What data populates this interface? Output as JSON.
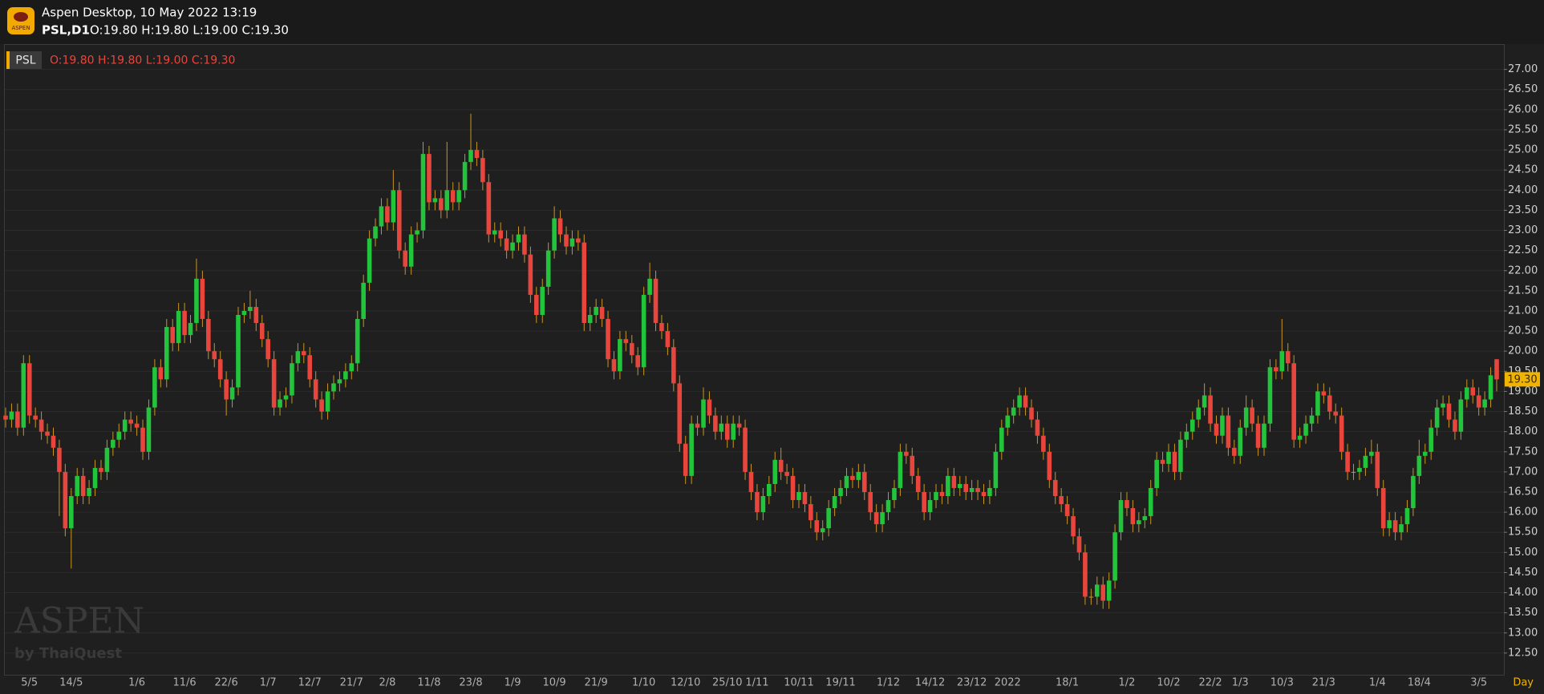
{
  "header": {
    "app_title": "Aspen Desktop, 10 May 2022 13:19",
    "symbol_period": "PSL,D1",
    "ohlc": "O:19.80 H:19.80 L:19.00 C:19.30"
  },
  "watermark": {
    "title": "ASPEN",
    "byline": "by ThaiQuest"
  },
  "chart_data": {
    "type": "candlestick",
    "symbol": "PSL",
    "ohlc_label": "O:19.80 H:19.80 L:19.00 C:19.30",
    "x_label": "Day",
    "up_color": "#22c43c",
    "down_color": "#e8463c",
    "neutral_color": "#c9961f",
    "wick_color": "#c9961f",
    "grid": true,
    "last_price": {
      "value": 19.3,
      "label": "19.30"
    },
    "last_price_color": "#f0b400",
    "ylim": [
      11.96,
      27.61
    ],
    "yticks": [
      {
        "value": 12.5,
        "label": "12.50"
      },
      {
        "value": 13,
        "label": "13.00"
      },
      {
        "value": 13.5,
        "label": "13.50"
      },
      {
        "value": 14,
        "label": "14.00"
      },
      {
        "value": 14.5,
        "label": "14.50"
      },
      {
        "value": 15,
        "label": "15.00"
      },
      {
        "value": 15.5,
        "label": "15.50"
      },
      {
        "value": 16,
        "label": "16.00"
      },
      {
        "value": 16.5,
        "label": "16.50"
      },
      {
        "value": 17,
        "label": "17.00"
      },
      {
        "value": 17.5,
        "label": "17.50"
      },
      {
        "value": 18,
        "label": "18.00"
      },
      {
        "value": 18.5,
        "label": "18.50"
      },
      {
        "value": 19,
        "label": "19.00"
      },
      {
        "value": 19.5,
        "label": "19.50"
      },
      {
        "value": 20,
        "label": "20.00"
      },
      {
        "value": 20.5,
        "label": "20.50"
      },
      {
        "value": 21,
        "label": "21.00"
      },
      {
        "value": 21.5,
        "label": "21.50"
      },
      {
        "value": 22,
        "label": "22.00"
      },
      {
        "value": 22.5,
        "label": "22.50"
      },
      {
        "value": 23,
        "label": "23.00"
      },
      {
        "value": 23.5,
        "label": "23.50"
      },
      {
        "value": 24,
        "label": "24.00"
      },
      {
        "value": 24.5,
        "label": "24.50"
      },
      {
        "value": 25,
        "label": "25.00"
      },
      {
        "value": 25.5,
        "label": "25.50"
      },
      {
        "value": 26,
        "label": "26.00"
      },
      {
        "value": 26.5,
        "label": "26.50"
      },
      {
        "value": 27,
        "label": "27.00"
      }
    ],
    "categories": [
      null,
      null,
      null,
      null,
      "5/5",
      null,
      null,
      null,
      null,
      null,
      null,
      "14/5",
      null,
      null,
      null,
      null,
      null,
      null,
      null,
      null,
      null,
      null,
      "1/6",
      null,
      null,
      null,
      null,
      null,
      null,
      null,
      "11/6",
      null,
      null,
      null,
      null,
      null,
      null,
      "22/6",
      null,
      null,
      null,
      null,
      null,
      null,
      "1/7",
      null,
      null,
      null,
      null,
      null,
      null,
      "12/7",
      null,
      null,
      null,
      null,
      null,
      null,
      "21/7",
      null,
      null,
      null,
      null,
      null,
      "2/8",
      null,
      null,
      null,
      null,
      null,
      null,
      "11/8",
      null,
      null,
      null,
      null,
      null,
      null,
      "23/8",
      null,
      null,
      null,
      null,
      null,
      null,
      "1/9",
      null,
      null,
      null,
      null,
      null,
      null,
      "10/9",
      null,
      null,
      null,
      null,
      null,
      null,
      "21/9",
      null,
      null,
      null,
      null,
      null,
      null,
      null,
      "1/10",
      null,
      null,
      null,
      null,
      null,
      null,
      "12/10",
      null,
      null,
      null,
      null,
      null,
      null,
      "25/10",
      null,
      null,
      null,
      null,
      "1/11",
      null,
      null,
      null,
      null,
      null,
      null,
      "10/11",
      null,
      null,
      null,
      null,
      null,
      null,
      "19/11",
      null,
      null,
      null,
      null,
      null,
      null,
      null,
      "1/12",
      null,
      null,
      null,
      null,
      null,
      null,
      "14/12",
      null,
      null,
      null,
      null,
      null,
      null,
      "23/12",
      null,
      null,
      null,
      null,
      null,
      "2022",
      null,
      null,
      null,
      null,
      null,
      null,
      null,
      null,
      null,
      "18/1",
      null,
      null,
      null,
      null,
      null,
      null,
      null,
      null,
      null,
      "1/2",
      null,
      null,
      null,
      null,
      null,
      null,
      "10/2",
      null,
      null,
      null,
      null,
      null,
      null,
      "22/2",
      null,
      null,
      null,
      null,
      "1/3",
      null,
      null,
      null,
      null,
      null,
      null,
      "10/3",
      null,
      null,
      null,
      null,
      null,
      null,
      "21/3",
      null,
      null,
      null,
      null,
      null,
      null,
      null,
      null,
      "1/4",
      null,
      null,
      null,
      null,
      null,
      null,
      "18/4",
      null,
      null,
      null,
      null,
      null,
      null,
      null,
      null,
      null,
      "3/5",
      null,
      null,
      null
    ],
    "open": [
      18.4,
      18.3,
      18.5,
      18.1,
      19.7,
      18.4,
      18.3,
      18.0,
      17.9,
      17.6,
      17.0,
      15.6,
      16.4,
      16.9,
      16.4,
      16.6,
      17.1,
      17.0,
      17.6,
      17.8,
      18.0,
      18.3,
      18.2,
      18.1,
      17.5,
      18.6,
      19.6,
      19.3,
      20.6,
      20.2,
      21.0,
      20.4,
      20.7,
      21.8,
      20.8,
      20.0,
      19.8,
      19.3,
      18.8,
      19.1,
      20.9,
      21.0,
      21.1,
      20.7,
      20.3,
      19.8,
      18.6,
      18.8,
      18.9,
      19.7,
      20.0,
      19.9,
      19.3,
      18.8,
      18.5,
      19.0,
      19.2,
      19.3,
      19.5,
      19.7,
      20.8,
      21.7,
      22.8,
      23.1,
      23.6,
      23.2,
      24.0,
      22.5,
      22.1,
      22.9,
      23.0,
      24.9,
      23.7,
      23.8,
      23.5,
      24.0,
      23.7,
      24.0,
      24.7,
      25.0,
      24.8,
      24.2,
      22.9,
      23.0,
      22.8,
      22.5,
      22.7,
      22.9,
      22.4,
      21.4,
      20.9,
      21.6,
      22.5,
      23.3,
      22.9,
      22.6,
      22.8,
      22.7,
      20.7,
      20.9,
      21.1,
      20.8,
      19.8,
      19.5,
      20.3,
      20.2,
      19.9,
      19.6,
      21.4,
      21.8,
      20.7,
      20.5,
      20.1,
      19.2,
      17.7,
      16.9,
      18.2,
      18.1,
      18.8,
      18.4,
      18.0,
      18.2,
      17.8,
      18.2,
      18.1,
      17.0,
      16.5,
      16.0,
      16.4,
      16.7,
      17.3,
      17.0,
      16.9,
      16.3,
      16.5,
      16.2,
      15.8,
      15.5,
      15.6,
      16.1,
      16.4,
      16.6,
      16.9,
      16.8,
      17.0,
      16.5,
      16.0,
      15.7,
      16.0,
      16.3,
      16.6,
      17.5,
      17.4,
      16.9,
      16.5,
      16.0,
      16.3,
      16.5,
      16.4,
      16.9,
      16.6,
      16.7,
      16.5,
      16.6,
      16.5,
      16.4,
      16.6,
      17.5,
      18.1,
      18.4,
      18.6,
      18.9,
      18.6,
      18.3,
      17.9,
      17.5,
      16.8,
      16.4,
      16.2,
      15.9,
      15.4,
      15.0,
      13.9,
      13.9,
      14.2,
      13.8,
      14.3,
      15.5,
      16.3,
      16.1,
      15.7,
      15.8,
      15.9,
      16.6,
      17.3,
      17.2,
      17.5,
      17.0,
      17.8,
      18.0,
      18.3,
      18.6,
      18.9,
      18.2,
      17.9,
      18.4,
      17.6,
      17.4,
      18.1,
      18.6,
      18.2,
      17.6,
      18.2,
      19.6,
      19.5,
      20.0,
      19.7,
      17.8,
      17.9,
      18.2,
      18.4,
      19.0,
      18.9,
      18.5,
      18.4,
      17.5,
      17.0,
      17.0,
      17.1,
      17.4,
      17.5,
      16.6,
      15.6,
      15.8,
      15.5,
      15.7,
      16.1,
      16.9,
      17.4,
      17.5,
      18.1,
      18.6,
      18.7,
      18.3,
      18.0,
      18.8,
      19.1,
      18.9,
      18.6,
      18.8,
      19.8
    ],
    "high": [
      18.6,
      18.7,
      18.7,
      19.9,
      19.9,
      18.6,
      18.5,
      18.2,
      18.1,
      17.8,
      17.2,
      16.6,
      17.1,
      17.1,
      16.8,
      17.3,
      17.3,
      17.8,
      18.0,
      18.2,
      18.5,
      18.5,
      18.4,
      18.3,
      18.8,
      19.8,
      19.8,
      20.8,
      20.8,
      21.2,
      21.2,
      20.9,
      22.3,
      22.0,
      21.0,
      20.2,
      20.0,
      19.5,
      19.3,
      21.1,
      21.2,
      21.5,
      21.3,
      20.9,
      20.5,
      20.0,
      19.0,
      19.1,
      19.9,
      20.2,
      20.2,
      20.1,
      19.5,
      19.0,
      19.2,
      19.4,
      19.5,
      19.7,
      19.9,
      21.0,
      21.9,
      23.0,
      23.3,
      23.8,
      23.8,
      24.5,
      24.2,
      22.7,
      23.1,
      23.2,
      25.2,
      25.1,
      24.0,
      24.0,
      25.2,
      24.2,
      24.2,
      24.9,
      25.9,
      25.2,
      25.0,
      24.4,
      23.2,
      23.2,
      23.0,
      22.9,
      23.1,
      23.1,
      22.6,
      21.6,
      21.8,
      22.7,
      23.6,
      23.5,
      23.1,
      23.0,
      23.0,
      22.9,
      21.1,
      21.3,
      21.3,
      21.0,
      20.0,
      20.5,
      20.5,
      20.4,
      20.1,
      21.6,
      22.2,
      22.0,
      20.9,
      20.7,
      20.3,
      19.4,
      17.9,
      18.4,
      18.4,
      19.1,
      19.0,
      18.6,
      18.4,
      18.4,
      18.4,
      18.4,
      18.3,
      17.2,
      16.7,
      16.6,
      16.9,
      17.5,
      17.6,
      17.2,
      17.1,
      16.7,
      16.7,
      16.4,
      16.0,
      15.8,
      16.3,
      16.6,
      16.8,
      17.1,
      17.1,
      17.2,
      17.2,
      16.7,
      16.2,
      16.2,
      16.5,
      16.8,
      17.7,
      17.7,
      17.6,
      17.1,
      16.7,
      16.5,
      16.7,
      16.7,
      17.1,
      17.1,
      16.9,
      16.9,
      16.8,
      16.8,
      16.7,
      16.8,
      17.7,
      18.3,
      18.6,
      18.8,
      19.1,
      19.1,
      18.8,
      18.5,
      18.1,
      17.7,
      17.0,
      16.6,
      16.4,
      16.1,
      15.6,
      15.2,
      14.1,
      14.4,
      14.4,
      14.5,
      15.7,
      16.5,
      16.5,
      16.3,
      16.0,
      16.1,
      16.8,
      17.5,
      17.5,
      17.7,
      17.7,
      18.0,
      18.2,
      18.5,
      18.8,
      19.2,
      19.1,
      18.4,
      18.6,
      18.6,
      17.8,
      18.3,
      18.9,
      18.8,
      18.4,
      18.4,
      19.8,
      19.8,
      20.8,
      20.2,
      19.9,
      18.1,
      18.4,
      18.6,
      19.2,
      19.2,
      19.1,
      18.7,
      18.6,
      17.7,
      17.2,
      17.3,
      17.6,
      17.8,
      17.7,
      16.8,
      16.0,
      16.0,
      15.9,
      16.3,
      17.1,
      17.8,
      17.7,
      18.3,
      18.8,
      18.9,
      18.9,
      18.5,
      19.0,
      19.3,
      19.3,
      19.1,
      19.0,
      19.6,
      19.8
    ],
    "low": [
      18.1,
      18.1,
      17.9,
      17.9,
      18.2,
      18.1,
      17.8,
      17.7,
      17.4,
      15.9,
      15.4,
      14.6,
      16.2,
      16.2,
      16.2,
      16.4,
      16.8,
      16.8,
      17.4,
      17.6,
      17.8,
      18.0,
      17.9,
      17.3,
      17.3,
      18.4,
      19.1,
      19.1,
      20.0,
      20.0,
      20.2,
      20.2,
      20.5,
      20.6,
      19.8,
      19.6,
      19.1,
      18.4,
      18.6,
      18.9,
      20.7,
      20.8,
      20.5,
      20.1,
      19.6,
      18.4,
      18.4,
      18.6,
      18.7,
      19.5,
      19.7,
      19.1,
      18.6,
      18.3,
      18.3,
      18.8,
      19.0,
      19.1,
      19.3,
      19.5,
      20.6,
      21.5,
      22.6,
      22.9,
      23.0,
      23.0,
      22.3,
      21.9,
      21.9,
      22.7,
      22.8,
      23.5,
      23.5,
      23.3,
      23.3,
      23.5,
      23.5,
      23.8,
      24.5,
      24.6,
      24.0,
      22.7,
      22.7,
      22.6,
      22.3,
      22.3,
      22.5,
      22.2,
      21.2,
      20.7,
      20.7,
      21.4,
      22.3,
      22.7,
      22.4,
      22.4,
      22.5,
      20.5,
      20.5,
      20.7,
      20.6,
      19.6,
      19.3,
      19.3,
      20.0,
      19.7,
      19.4,
      19.4,
      21.2,
      20.5,
      20.3,
      19.9,
      19.0,
      17.5,
      16.7,
      16.7,
      17.9,
      17.9,
      18.2,
      17.8,
      17.8,
      17.6,
      17.6,
      17.9,
      16.8,
      16.3,
      15.8,
      15.8,
      16.2,
      16.5,
      16.8,
      16.7,
      16.1,
      16.1,
      16.0,
      15.6,
      15.3,
      15.3,
      15.4,
      15.9,
      16.2,
      16.4,
      16.6,
      16.6,
      16.3,
      15.8,
      15.5,
      15.5,
      15.8,
      16.1,
      16.4,
      17.2,
      16.7,
      16.3,
      15.8,
      15.8,
      16.1,
      16.2,
      16.2,
      16.4,
      16.4,
      16.3,
      16.3,
      16.3,
      16.2,
      16.2,
      16.4,
      17.3,
      17.9,
      18.2,
      18.4,
      18.4,
      18.1,
      17.7,
      17.3,
      16.6,
      16.2,
      16.0,
      15.7,
      15.2,
      14.8,
      13.7,
      13.7,
      13.7,
      13.6,
      13.6,
      14.1,
      15.3,
      15.9,
      15.5,
      15.5,
      15.6,
      15.7,
      16.4,
      17.0,
      17.0,
      16.8,
      16.8,
      17.6,
      17.8,
      18.1,
      18.4,
      18.0,
      17.7,
      17.7,
      17.4,
      17.2,
      17.2,
      17.9,
      18.0,
      17.4,
      17.4,
      18.0,
      19.3,
      19.3,
      19.5,
      17.6,
      17.6,
      17.7,
      18.0,
      18.2,
      18.7,
      18.3,
      18.2,
      17.3,
      16.8,
      16.8,
      16.8,
      16.9,
      17.2,
      16.4,
      15.4,
      15.4,
      15.3,
      15.3,
      15.5,
      15.9,
      16.7,
      17.2,
      17.3,
      17.9,
      18.4,
      18.1,
      17.8,
      17.8,
      18.6,
      18.7,
      18.4,
      18.4,
      18.6,
      19.0
    ],
    "close": [
      18.3,
      18.5,
      18.1,
      19.7,
      18.4,
      18.3,
      18.0,
      17.9,
      17.6,
      17.0,
      15.6,
      16.4,
      16.9,
      16.4,
      16.6,
      17.1,
      17.0,
      17.6,
      17.8,
      18.0,
      18.3,
      18.2,
      18.1,
      17.5,
      18.6,
      19.6,
      19.3,
      20.6,
      20.2,
      21.0,
      20.4,
      20.7,
      21.8,
      20.8,
      20.0,
      19.8,
      19.3,
      18.8,
      19.1,
      20.9,
      21.0,
      21.1,
      20.7,
      20.3,
      19.8,
      18.6,
      18.8,
      18.9,
      19.7,
      20.0,
      19.9,
      19.3,
      18.8,
      18.5,
      19.0,
      19.2,
      19.3,
      19.5,
      19.7,
      20.8,
      21.7,
      22.8,
      23.1,
      23.6,
      23.2,
      24.0,
      22.5,
      22.1,
      22.9,
      23.0,
      24.9,
      23.7,
      23.8,
      23.5,
      24.0,
      23.7,
      24.0,
      24.7,
      25.0,
      24.8,
      24.2,
      22.9,
      23.0,
      22.8,
      22.5,
      22.7,
      22.9,
      22.4,
      21.4,
      20.9,
      21.6,
      22.5,
      23.3,
      22.9,
      22.6,
      22.8,
      22.7,
      20.7,
      20.9,
      21.1,
      20.8,
      19.8,
      19.5,
      20.3,
      20.2,
      19.9,
      19.6,
      21.4,
      21.8,
      20.7,
      20.5,
      20.1,
      19.2,
      17.7,
      16.9,
      18.2,
      18.1,
      18.8,
      18.4,
      18.0,
      18.2,
      17.8,
      18.2,
      18.1,
      17.0,
      16.5,
      16.0,
      16.4,
      16.7,
      17.3,
      17.0,
      16.9,
      16.3,
      16.5,
      16.2,
      15.8,
      15.5,
      15.6,
      16.1,
      16.4,
      16.6,
      16.9,
      16.8,
      17.0,
      16.5,
      16.0,
      15.7,
      16.0,
      16.3,
      16.6,
      17.5,
      17.4,
      16.9,
      16.5,
      16.0,
      16.3,
      16.5,
      16.4,
      16.9,
      16.6,
      16.7,
      16.5,
      16.6,
      16.5,
      16.4,
      16.6,
      17.5,
      18.1,
      18.4,
      18.6,
      18.9,
      18.6,
      18.3,
      17.9,
      17.5,
      16.8,
      16.4,
      16.2,
      15.9,
      15.4,
      15.0,
      13.9,
      13.9,
      14.2,
      13.8,
      14.3,
      15.5,
      16.3,
      16.1,
      15.7,
      15.8,
      15.9,
      16.6,
      17.3,
      17.2,
      17.5,
      17.0,
      17.8,
      18.0,
      18.3,
      18.6,
      18.9,
      18.2,
      17.9,
      18.4,
      17.6,
      17.4,
      18.1,
      18.6,
      18.2,
      17.6,
      18.2,
      19.6,
      19.5,
      20.0,
      19.7,
      17.8,
      17.9,
      18.2,
      18.4,
      19.0,
      18.9,
      18.5,
      18.4,
      17.5,
      17.0,
      17.0,
      17.1,
      17.4,
      17.5,
      16.6,
      15.6,
      15.8,
      15.5,
      15.7,
      16.1,
      16.9,
      17.4,
      17.5,
      18.1,
      18.6,
      18.7,
      18.3,
      18.0,
      18.8,
      19.1,
      18.9,
      18.6,
      18.8,
      19.4,
      19.3
    ]
  }
}
